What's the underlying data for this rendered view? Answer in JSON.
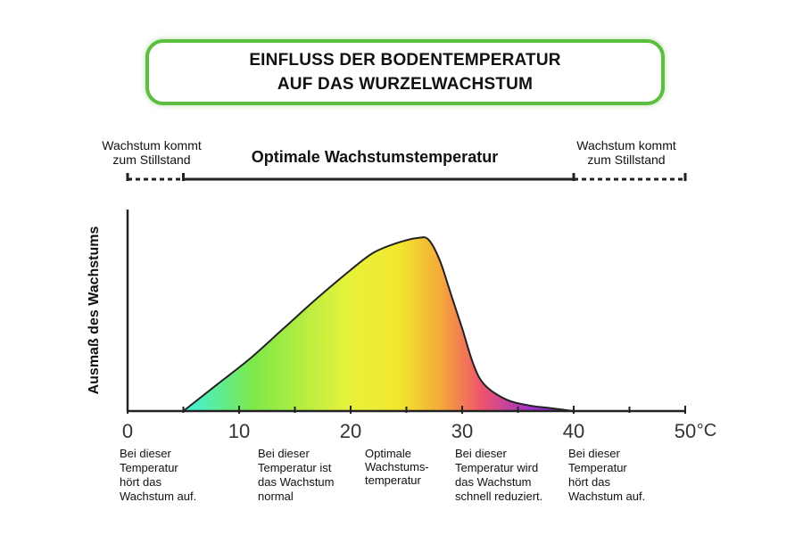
{
  "title": {
    "line1": "EINFLUSS DER BODENTEMPERATUR",
    "line2": "AUF DAS WURZELWACHSTUM"
  },
  "ranges": {
    "left_stop": [
      "Wachstum kommt",
      "zum Stillstand"
    ],
    "optimal": "Optimale Wachstumstemperatur",
    "right_stop": [
      "Wachstum kommt",
      "zum Stillstand"
    ],
    "optimal_span": [
      5,
      40
    ],
    "stop_left_span": [
      0,
      5
    ],
    "stop_right_span": [
      40,
      50
    ]
  },
  "chart_data": {
    "type": "area",
    "ylabel": "Ausmaß des Wachstums",
    "xlabel": "",
    "unit": "°C",
    "xlim": [
      0,
      50
    ],
    "ylim": [
      0,
      100
    ],
    "x_ticks": [
      0,
      10,
      20,
      30,
      40,
      50
    ],
    "minor_ticks": [
      5,
      15,
      25,
      35,
      45
    ],
    "x": [
      5,
      8,
      11,
      14,
      17,
      20,
      22,
      24,
      26,
      27,
      28,
      29,
      30,
      31,
      32,
      34,
      36,
      38,
      40
    ],
    "values": [
      0,
      14,
      28,
      44,
      60,
      75,
      84,
      89,
      92,
      91,
      80,
      62,
      44,
      25,
      14,
      6,
      3,
      1.5,
      0
    ],
    "gradient_colors": [
      "#3ff0e0",
      "#7ee84a",
      "#e6f23a",
      "#f2e82e",
      "#f5a93a",
      "#f0566a",
      "#9a2fd0",
      "#7a2bb8"
    ],
    "notes": [
      {
        "x": 0,
        "lines": [
          "Bei dieser",
          "Temperatur",
          "hört das",
          "Wachstum auf."
        ]
      },
      {
        "x": 12,
        "lines": [
          "Bei dieser",
          "Temperatur ist",
          "das Wachstum",
          "normal"
        ]
      },
      {
        "x": 22,
        "lines": [
          "Optimale",
          "Wachstums-",
          "temperatur"
        ]
      },
      {
        "x": 30,
        "lines": [
          "Bei dieser",
          "Temperatur wird",
          "das Wachstum",
          "schnell reduziert."
        ]
      },
      {
        "x": 40,
        "lines": [
          "Bei dieser",
          "Temperatur",
          "hört das",
          "Wachstum auf."
        ]
      }
    ]
  },
  "colors": {
    "title_border": "#5cbd3e",
    "axis": "#222222"
  }
}
